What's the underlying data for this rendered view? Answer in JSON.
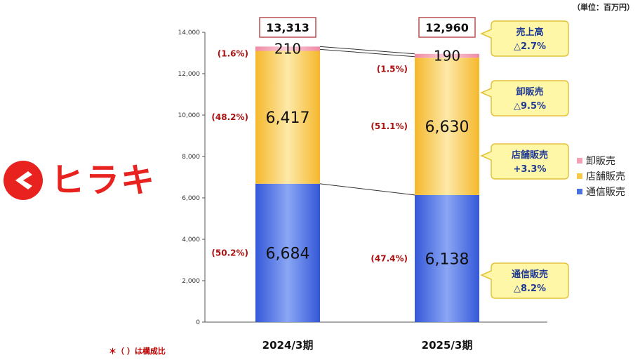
{
  "unit_note": "（単位：百万円）",
  "footnote": "＊（ ）は構成比",
  "logo": {
    "text": "ヒラキ",
    "icon": "hiraki-logo-mark-icon",
    "color": "#e8231f"
  },
  "legend": [
    {
      "name": "卸販売",
      "color": "#f4a0b4"
    },
    {
      "name": "店舗販売",
      "color": "#f8c84c"
    },
    {
      "name": "通信販売",
      "color": "#4a70e0"
    }
  ],
  "chart_data": {
    "type": "bar",
    "stacked": true,
    "categories": [
      "2024/3期",
      "2025/3期"
    ],
    "ylim": [
      0,
      14000
    ],
    "yticks": [
      0,
      2000,
      4000,
      6000,
      8000,
      10000,
      12000,
      14000
    ],
    "ytick_labels": [
      "0",
      "2,000",
      "4,000",
      "6,000",
      "8,000",
      "10,000",
      "12,000",
      "14,000"
    ],
    "series": [
      {
        "name": "通信販売",
        "values": [
          6684,
          6138
        ],
        "labels": [
          "6,684",
          "6,138"
        ],
        "shares": [
          "(50.2%)",
          "(47.4%)"
        ]
      },
      {
        "name": "店舗販売",
        "values": [
          6417,
          6630
        ],
        "labels": [
          "6,417",
          "6,630"
        ],
        "shares": [
          "(48.2%)",
          "(51.1%)"
        ]
      },
      {
        "name": "卸販売",
        "values": [
          210,
          190
        ],
        "labels": [
          "210",
          "190"
        ],
        "shares": [
          "(1.6%)",
          "(1.5%)"
        ]
      }
    ],
    "totals": [
      13313,
      12960
    ],
    "total_labels": [
      "13,313",
      "12,960"
    ],
    "callouts": [
      {
        "title": "売上高",
        "change": "△2.7%"
      },
      {
        "title": "卸販売",
        "change": "△9.5%"
      },
      {
        "title": "店舗販売",
        "change": "+3.3%"
      },
      {
        "title": "通信販売",
        "change": "△8.2%"
      }
    ]
  }
}
